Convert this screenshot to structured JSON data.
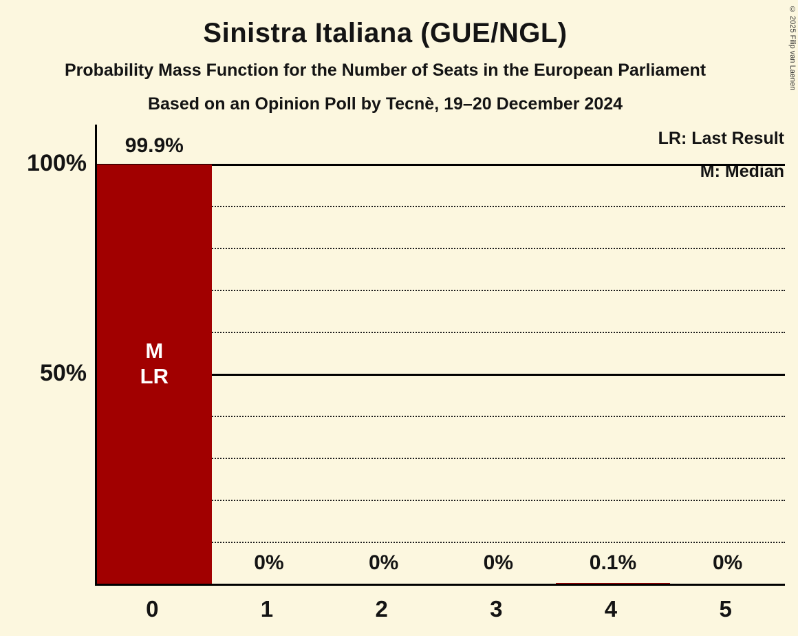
{
  "title": "Sinistra Italiana (GUE/NGL)",
  "subtitle1": "Probability Mass Function for the Number of Seats in the European Parliament",
  "subtitle2": "Based on an Opinion Poll by Tecnè, 19–20 December 2024",
  "legend": {
    "lr": "LR: Last Result",
    "m": "M: Median"
  },
  "copyright": "© 2025 Filip van Laenen",
  "colors": {
    "background": "#fcf7df",
    "text": "#141414",
    "bar": "#a10000",
    "bar_label": "#ffffff"
  },
  "chart_data": {
    "type": "bar",
    "title": "Sinistra Italiana (GUE/NGL)",
    "categories": [
      "0",
      "1",
      "2",
      "3",
      "4",
      "5"
    ],
    "values": [
      99.9,
      0,
      0,
      0,
      0.1,
      0
    ],
    "value_labels": [
      "99.9%",
      "0%",
      "0%",
      "0%",
      "0.1%",
      "0%"
    ],
    "bar_annotations": [
      [
        "M",
        "LR"
      ],
      [],
      [],
      [],
      [],
      []
    ],
    "ylabel_ticks": [
      "100%",
      "50%"
    ],
    "ylim": [
      0,
      100
    ],
    "gridlines": {
      "dotted": [
        10,
        20,
        30,
        40,
        60,
        70,
        80,
        90
      ],
      "solid": [
        50,
        100
      ]
    },
    "legend_position": "top-right",
    "grid": true
  }
}
